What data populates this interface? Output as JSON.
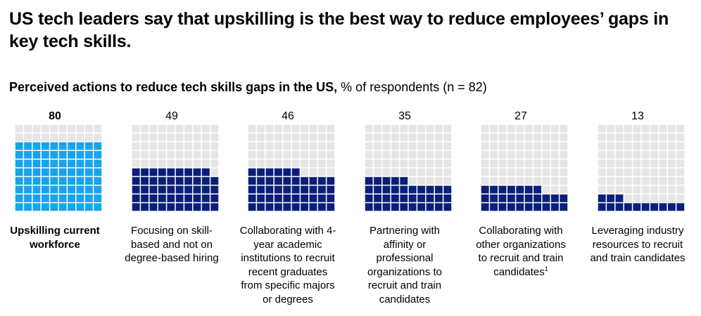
{
  "title": "US tech leaders say that upskilling is the best way to reduce employees’ gaps in key tech skills.",
  "subtitle": {
    "bold": "Perceived actions to reduce tech skills gaps in the US,",
    "normal": " % of respondents (n = 82)"
  },
  "colors": {
    "empty": "#e6e6e6",
    "highlight": "#1aa3ea",
    "filled": "#0b1f7a"
  },
  "chart_data": {
    "type": "waffle",
    "grid": {
      "rows": 10,
      "cols": 10
    },
    "categories": [
      {
        "label": "Upskilling current workforce",
        "value": 80,
        "highlight": true
      },
      {
        "label": "Focusing on skill-based and not on degree-based hiring",
        "value": 49,
        "highlight": false
      },
      {
        "label": "Collaborating with 4-year academic institutions to recruit recent graduates from specific majors or degrees",
        "value": 46,
        "highlight": false
      },
      {
        "label": "Partnering with affinity or professional organizations to recruit and train candidates",
        "value": 35,
        "highlight": false
      },
      {
        "label": "Collaborating with other organizations to recruit and train candidates",
        "footnote": "1",
        "value": 27,
        "highlight": false
      },
      {
        "label": "Leveraging industry resources to recruit and train candidates",
        "value": 13,
        "highlight": false
      }
    ]
  }
}
